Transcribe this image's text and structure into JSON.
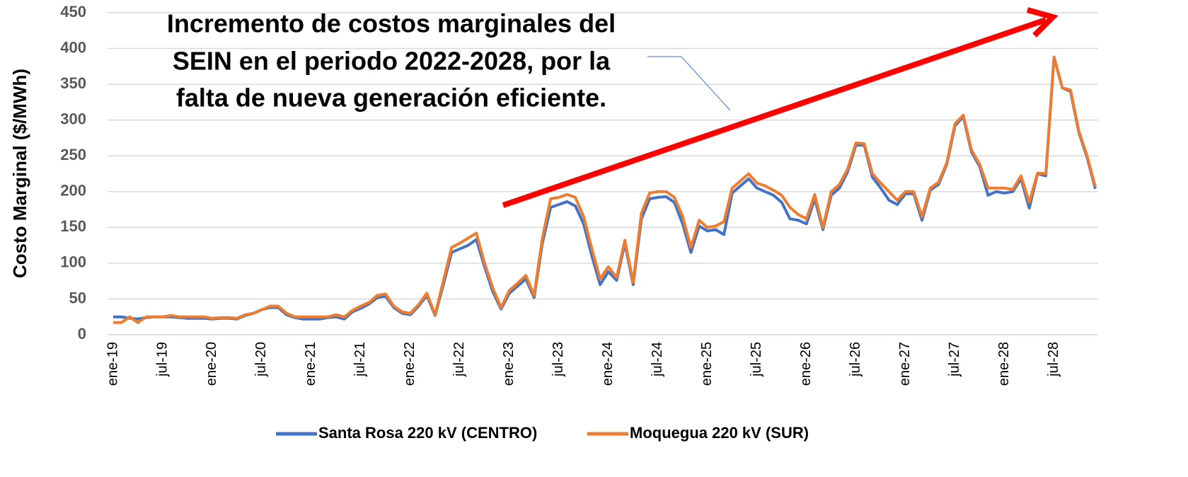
{
  "chart_data": {
    "type": "line",
    "annotation": [
      "Incremento de costos marginales del",
      "SEIN en el periodo 2022-2028, por la",
      "falta de nueva generación eficiente."
    ],
    "ylabel": "Costo Marginal ($/MWh)",
    "ylim": [
      0,
      450
    ],
    "yticks": [
      0,
      50,
      100,
      150,
      200,
      250,
      300,
      350,
      400,
      450
    ],
    "grid": true,
    "legend": "bottom",
    "categories": [
      "ene-19",
      null,
      null,
      null,
      null,
      null,
      "jul-19",
      null,
      null,
      null,
      null,
      null,
      "ene-20",
      null,
      null,
      null,
      null,
      null,
      "jul-20",
      null,
      null,
      null,
      null,
      null,
      "ene-21",
      null,
      null,
      null,
      null,
      null,
      "jul-21",
      null,
      null,
      null,
      null,
      null,
      "ene-22",
      null,
      null,
      null,
      null,
      null,
      "jul-22",
      null,
      null,
      null,
      null,
      null,
      "ene-23",
      null,
      null,
      null,
      null,
      null,
      "jul-23",
      null,
      null,
      null,
      null,
      null,
      "ene-24",
      null,
      null,
      null,
      null,
      null,
      "jul-24",
      null,
      null,
      null,
      null,
      null,
      "ene-25",
      null,
      null,
      null,
      null,
      null,
      "jul-25",
      null,
      null,
      null,
      null,
      null,
      "ene-26",
      null,
      null,
      null,
      null,
      null,
      "jul-26",
      null,
      null,
      null,
      null,
      null,
      "ene-27",
      null,
      null,
      null,
      null,
      null,
      "jul-27",
      null,
      null,
      null,
      null,
      null,
      "ene-28",
      null,
      null,
      null,
      null,
      null,
      "jul-28",
      null,
      null,
      null,
      null,
      null
    ],
    "series": [
      {
        "name": "Santa Rosa 220 kV (CENTRO)",
        "color": "#4472c4",
        "values": [
          25,
          25,
          23,
          22,
          24,
          25,
          25,
          25,
          24,
          23,
          23,
          23,
          22,
          23,
          23,
          22,
          27,
          30,
          35,
          38,
          38,
          28,
          24,
          22,
          22,
          22,
          24,
          25,
          22,
          32,
          37,
          43,
          52,
          54,
          38,
          30,
          28,
          40,
          55,
          27,
          70,
          115,
          120,
          125,
          133,
          95,
          60,
          36,
          58,
          68,
          78,
          52,
          128,
          178,
          182,
          186,
          180,
          155,
          110,
          70,
          88,
          76,
          128,
          70,
          162,
          190,
          192,
          193,
          185,
          155,
          115,
          152,
          145,
          147,
          140,
          198,
          208,
          218,
          205,
          200,
          195,
          185,
          162,
          160,
          155,
          190,
          147,
          195,
          205,
          228,
          265,
          265,
          220,
          205,
          188,
          182,
          197,
          197,
          160,
          202,
          210,
          238,
          292,
          305,
          255,
          235,
          195,
          200,
          198,
          200,
          218,
          177,
          225,
          222,
          388,
          345,
          340,
          283,
          248,
          204
        ]
      },
      {
        "name": "Moquegua 220 kV (SUR)",
        "color": "#ed7d31",
        "values": [
          17,
          17,
          25,
          17,
          25,
          25,
          25,
          27,
          25,
          25,
          25,
          25,
          23,
          24,
          24,
          23,
          28,
          30,
          35,
          40,
          40,
          30,
          25,
          25,
          25,
          25,
          25,
          28,
          25,
          34,
          40,
          45,
          55,
          57,
          40,
          32,
          30,
          42,
          58,
          28,
          75,
          122,
          128,
          135,
          142,
          100,
          65,
          38,
          62,
          72,
          83,
          55,
          135,
          190,
          192,
          196,
          192,
          165,
          120,
          78,
          95,
          80,
          132,
          73,
          170,
          198,
          200,
          200,
          192,
          165,
          122,
          160,
          150,
          152,
          158,
          205,
          215,
          225,
          212,
          208,
          202,
          195,
          178,
          168,
          162,
          196,
          150,
          200,
          210,
          232,
          268,
          267,
          225,
          212,
          200,
          188,
          200,
          200,
          165,
          205,
          213,
          240,
          295,
          307,
          258,
          238,
          205,
          205,
          205,
          203,
          222,
          185,
          226,
          225,
          388,
          345,
          342,
          285,
          250,
          207
        ]
      }
    ]
  }
}
